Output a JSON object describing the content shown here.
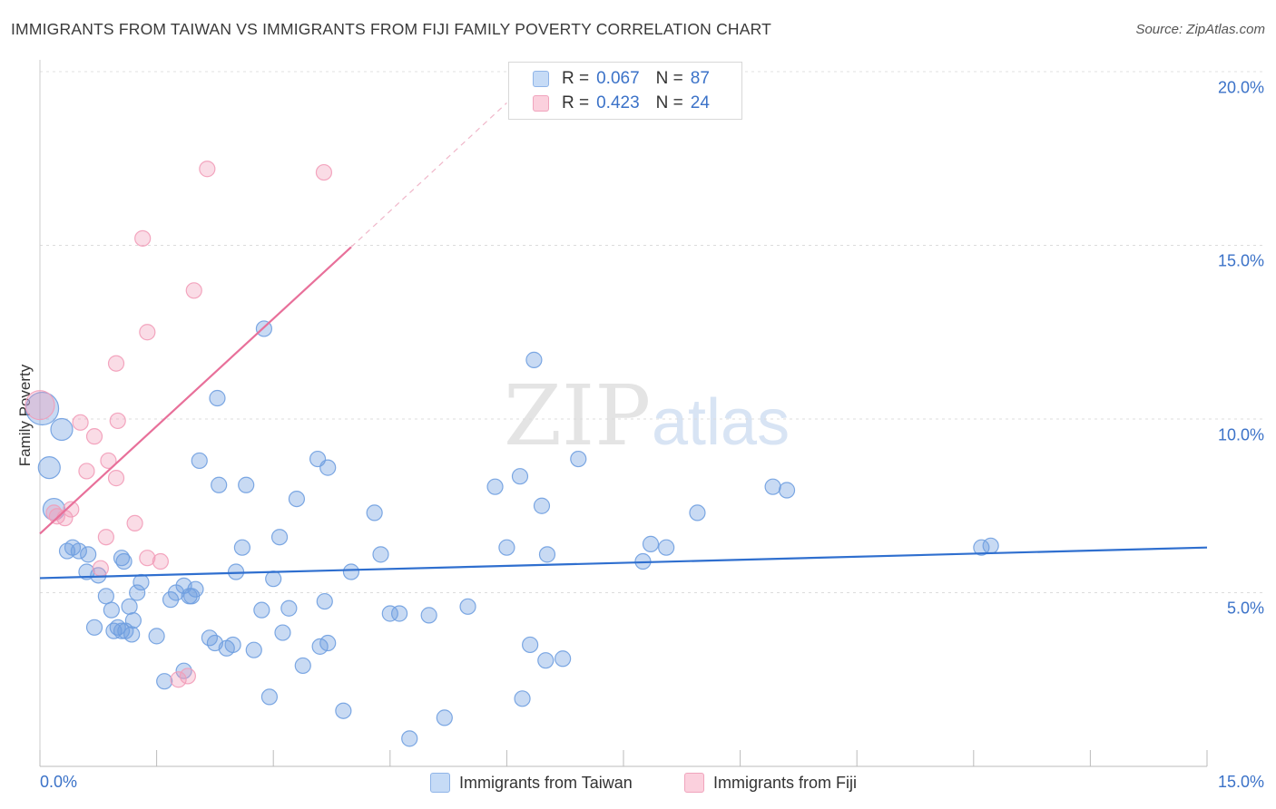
{
  "chart_data": {
    "type": "scatter",
    "title": "IMMIGRANTS FROM TAIWAN VS IMMIGRANTS FROM FIJI FAMILY POVERTY CORRELATION CHART",
    "source": "Source: ZipAtlas.com",
    "ylabel": "Family Poverty",
    "xlabel": "",
    "xlim": [
      0,
      15
    ],
    "ylim": [
      0,
      20
    ],
    "x_tick_labels": [
      "0.0%",
      "15.0%"
    ],
    "y_ticks": [
      {
        "value": 5,
        "label": "5.0%"
      },
      {
        "value": 10,
        "label": "10.0%"
      },
      {
        "value": 15,
        "label": "15.0%"
      },
      {
        "value": 20,
        "label": "20.0%"
      }
    ],
    "watermark": {
      "zip": "ZIP",
      "atlas": "atlas"
    },
    "colors": {
      "taiwan": "#6f9fe0",
      "fiji": "#f29cb8",
      "taiwan_line": "#2f6fcf",
      "fiji_line": "#e8709a"
    },
    "legend": [
      {
        "r_label": "R =",
        "r_value": "0.067",
        "n_label": "N =",
        "n_value": "87"
      },
      {
        "r_label": "R =",
        "r_value": "0.423",
        "n_label": "N =",
        "n_value": "24"
      }
    ],
    "series": [
      {
        "name": "Immigrants from Taiwan",
        "trend": {
          "x0": 0,
          "y0": 5.42,
          "x1": 15,
          "y1": 6.3
        },
        "points": [
          [
            0.03,
            10.3
          ],
          [
            0.12,
            8.6
          ],
          [
            0.28,
            9.7
          ],
          [
            0.18,
            7.4
          ],
          [
            0.35,
            6.2
          ],
          [
            0.42,
            6.3
          ],
          [
            0.5,
            6.2
          ],
          [
            0.62,
            6.1
          ],
          [
            0.6,
            5.6
          ],
          [
            0.75,
            5.5
          ],
          [
            1.08,
            5.9
          ],
          [
            1.05,
            6.0
          ],
          [
            0.85,
            4.9
          ],
          [
            0.92,
            4.5
          ],
          [
            1.0,
            4.0
          ],
          [
            1.15,
            4.6
          ],
          [
            1.2,
            4.2
          ],
          [
            1.3,
            5.3
          ],
          [
            1.18,
            3.8
          ],
          [
            1.05,
            3.9
          ],
          [
            0.95,
            3.9
          ],
          [
            1.5,
            3.75
          ],
          [
            1.68,
            4.8
          ],
          [
            1.75,
            5.0
          ],
          [
            1.85,
            5.2
          ],
          [
            1.92,
            4.9
          ],
          [
            1.95,
            4.9
          ],
          [
            2.05,
            8.8
          ],
          [
            2.28,
            10.6
          ],
          [
            2.3,
            8.1
          ],
          [
            2.52,
            5.6
          ],
          [
            2.6,
            6.3
          ],
          [
            2.65,
            8.1
          ],
          [
            2.18,
            3.7
          ],
          [
            2.25,
            3.55
          ],
          [
            2.4,
            3.4
          ],
          [
            2.48,
            3.5
          ],
          [
            2.75,
            3.35
          ],
          [
            2.85,
            4.5
          ],
          [
            2.88,
            12.6
          ],
          [
            3.0,
            5.4
          ],
          [
            3.08,
            6.6
          ],
          [
            3.12,
            3.85
          ],
          [
            3.2,
            4.55
          ],
          [
            3.3,
            7.7
          ],
          [
            3.38,
            2.9
          ],
          [
            3.57,
            8.85
          ],
          [
            3.6,
            3.45
          ],
          [
            3.7,
            8.6
          ],
          [
            3.66,
            4.75
          ],
          [
            3.9,
            1.6
          ],
          [
            4.0,
            5.6
          ],
          [
            4.3,
            7.3
          ],
          [
            4.38,
            6.1
          ],
          [
            4.5,
            4.4
          ],
          [
            4.62,
            4.4
          ],
          [
            5.0,
            4.35
          ],
          [
            5.2,
            1.4
          ],
          [
            5.5,
            4.6
          ],
          [
            5.85,
            8.05
          ],
          [
            6.0,
            6.3
          ],
          [
            6.17,
            8.35
          ],
          [
            6.2,
            1.95
          ],
          [
            6.3,
            3.5
          ],
          [
            6.35,
            11.7
          ],
          [
            6.45,
            7.5
          ],
          [
            6.5,
            3.05
          ],
          [
            6.52,
            6.1
          ],
          [
            6.72,
            3.1
          ],
          [
            6.92,
            8.85
          ],
          [
            7.75,
            5.9
          ],
          [
            7.85,
            6.4
          ],
          [
            8.05,
            6.3
          ],
          [
            8.45,
            7.3
          ],
          [
            9.42,
            8.05
          ],
          [
            9.6,
            7.95
          ],
          [
            12.1,
            6.3
          ],
          [
            12.22,
            6.35
          ],
          [
            4.75,
            0.8
          ],
          [
            2.95,
            2.0
          ],
          [
            1.6,
            2.45
          ],
          [
            1.85,
            2.75
          ],
          [
            1.25,
            5.0
          ],
          [
            0.7,
            4.0
          ],
          [
            1.1,
            3.9
          ],
          [
            2.0,
            5.1
          ],
          [
            3.7,
            3.55
          ]
        ]
      },
      {
        "name": "Immigrants from Fiji",
        "trend": {
          "x0": 0,
          "y0": 6.7,
          "x1": 4.0,
          "y1": 14.95
        },
        "trend_extension": {
          "x0": 4.0,
          "y0": 14.95,
          "x1": 6.0,
          "y1": 19.1
        },
        "points": [
          [
            0.0,
            10.4
          ],
          [
            0.18,
            7.3
          ],
          [
            0.32,
            7.15
          ],
          [
            0.22,
            7.2
          ],
          [
            0.4,
            7.4
          ],
          [
            0.52,
            9.9
          ],
          [
            0.6,
            8.5
          ],
          [
            0.7,
            9.5
          ],
          [
            0.98,
            11.6
          ],
          [
            1.0,
            9.95
          ],
          [
            0.88,
            8.8
          ],
          [
            0.98,
            8.3
          ],
          [
            0.85,
            6.6
          ],
          [
            0.78,
            5.7
          ],
          [
            1.32,
            15.2
          ],
          [
            1.22,
            7.0
          ],
          [
            1.38,
            12.5
          ],
          [
            1.55,
            5.9
          ],
          [
            1.38,
            6.0
          ],
          [
            1.98,
            13.7
          ],
          [
            2.15,
            17.2
          ],
          [
            3.65,
            17.1
          ],
          [
            1.78,
            2.5
          ],
          [
            1.9,
            2.6
          ]
        ]
      }
    ]
  }
}
